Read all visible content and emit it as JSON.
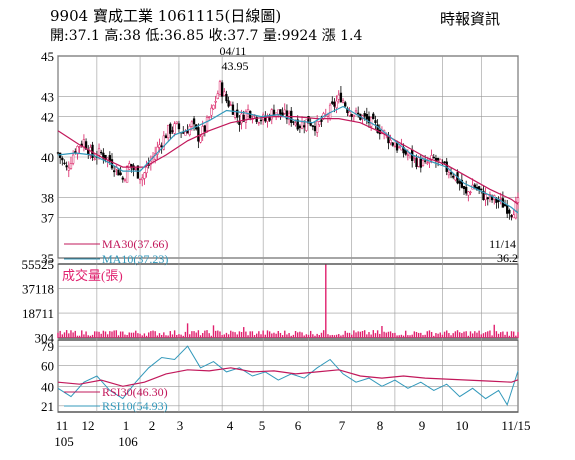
{
  "header": {
    "title": "9904  寶成工業 1061115(日線圖)",
    "source": "時報資訊",
    "quote": "開:37.1 高:38 低:36.85 收:37.7 量:9924 漲 1.4"
  },
  "colors": {
    "candle_up": "#d81b60",
    "candle_down": "#000000",
    "ma30": "#c2185b",
    "ma10": "#3399bb",
    "volume": "#e0206e",
    "rsi30": "#c2185b",
    "rsi10": "#3399bb",
    "grid": "#999999"
  },
  "chart_data": [
    {
      "type": "candlestick",
      "title": "9904  寶成工業 1061115(日線圖)",
      "yticks": [
        35,
        37,
        38,
        40,
        42,
        43,
        45
      ],
      "ylim": [
        35,
        45
      ],
      "grid": true,
      "x_month_labels": [
        "11",
        "12",
        "1",
        "2",
        "3",
        "4",
        "5",
        "6",
        "7",
        "8",
        "9",
        "10",
        "11/15"
      ],
      "x_year_labels": [
        "105",
        "106"
      ],
      "annotations": {
        "high_date": "04/11",
        "high_value": "43.95",
        "low_date": "11/14",
        "low_value": "36.2"
      },
      "legend": {
        "ma30": "MA30(37.66)",
        "ma10": "MA10(37.23)"
      },
      "close_points": [
        [
          0,
          40.2
        ],
        [
          4,
          39.4
        ],
        [
          8,
          40.4
        ],
        [
          12,
          40.8
        ],
        [
          16,
          40.0
        ],
        [
          20,
          40.2
        ],
        [
          24,
          39.8
        ],
        [
          28,
          39.3
        ],
        [
          30,
          38.9
        ],
        [
          33,
          39.6
        ],
        [
          36,
          39.3
        ],
        [
          39,
          39.0
        ],
        [
          43,
          39.8
        ],
        [
          47,
          40.6
        ],
        [
          51,
          41.3
        ],
        [
          55,
          41.5
        ],
        [
          58,
          41.2
        ],
        [
          62,
          41.6
        ],
        [
          65,
          41.0
        ],
        [
          68,
          41.4
        ],
        [
          72,
          42.5
        ],
        [
          75,
          43.5
        ],
        [
          78,
          42.8
        ],
        [
          81,
          42.4
        ],
        [
          84,
          41.8
        ],
        [
          88,
          42.3
        ],
        [
          92,
          42.0
        ],
        [
          96,
          41.8
        ],
        [
          100,
          42.3
        ],
        [
          104,
          42.1
        ],
        [
          108,
          41.9
        ],
        [
          112,
          41.6
        ],
        [
          116,
          41.8
        ],
        [
          120,
          41.5
        ],
        [
          124,
          42.0
        ],
        [
          128,
          42.6
        ],
        [
          131,
          43.0
        ],
        [
          134,
          42.4
        ],
        [
          138,
          42.1
        ],
        [
          142,
          41.9
        ],
        [
          146,
          41.6
        ],
        [
          150,
          41.3
        ],
        [
          154,
          40.8
        ],
        [
          158,
          40.4
        ],
        [
          162,
          40.1
        ],
        [
          166,
          39.8
        ],
        [
          170,
          39.6
        ],
        [
          174,
          39.9
        ],
        [
          178,
          39.5
        ],
        [
          182,
          39.3
        ],
        [
          186,
          38.7
        ],
        [
          189,
          38.1
        ],
        [
          192,
          38.6
        ],
        [
          195,
          38.3
        ],
        [
          198,
          38.0
        ],
        [
          201,
          37.9
        ],
        [
          204,
          37.8
        ],
        [
          207,
          37.6
        ],
        [
          210,
          37.3
        ],
        [
          213,
          37.7
        ]
      ],
      "ma30_points": [
        [
          0,
          41.3
        ],
        [
          10,
          40.6
        ],
        [
          20,
          40.0
        ],
        [
          30,
          39.5
        ],
        [
          40,
          39.5
        ],
        [
          50,
          40.1
        ],
        [
          60,
          40.8
        ],
        [
          70,
          41.3
        ],
        [
          80,
          41.7
        ],
        [
          90,
          41.9
        ],
        [
          100,
          42.0
        ],
        [
          110,
          42.0
        ],
        [
          120,
          41.9
        ],
        [
          130,
          41.9
        ],
        [
          140,
          41.7
        ],
        [
          150,
          41.2
        ],
        [
          160,
          40.6
        ],
        [
          170,
          40.0
        ],
        [
          180,
          39.6
        ],
        [
          190,
          39.0
        ],
        [
          200,
          38.4
        ],
        [
          210,
          37.9
        ],
        [
          213,
          37.66
        ]
      ],
      "ma10_points": [
        [
          0,
          40.1
        ],
        [
          8,
          40.2
        ],
        [
          16,
          40.1
        ],
        [
          24,
          39.7
        ],
        [
          30,
          39.3
        ],
        [
          38,
          39.3
        ],
        [
          46,
          40.2
        ],
        [
          54,
          41.1
        ],
        [
          62,
          41.4
        ],
        [
          70,
          41.8
        ],
        [
          78,
          42.3
        ],
        [
          86,
          42.2
        ],
        [
          94,
          42.0
        ],
        [
          102,
          42.1
        ],
        [
          110,
          41.8
        ],
        [
          118,
          41.7
        ],
        [
          126,
          42.2
        ],
        [
          132,
          42.5
        ],
        [
          140,
          42.0
        ],
        [
          148,
          41.5
        ],
        [
          156,
          40.8
        ],
        [
          164,
          40.1
        ],
        [
          172,
          39.8
        ],
        [
          180,
          39.5
        ],
        [
          188,
          38.7
        ],
        [
          196,
          38.3
        ],
        [
          204,
          37.9
        ],
        [
          210,
          37.5
        ],
        [
          213,
          37.23
        ]
      ]
    },
    {
      "type": "bar",
      "label": "成交量(張)",
      "yticks": [
        304,
        18711,
        37118,
        55525
      ],
      "ylim": [
        0,
        55525
      ],
      "baseline": 4000,
      "spikes": [
        [
          124,
          55000
        ],
        [
          60,
          11000
        ],
        [
          72,
          9500
        ],
        [
          86,
          8200
        ],
        [
          150,
          9000
        ],
        [
          202,
          9924
        ]
      ]
    },
    {
      "type": "line",
      "yticks": [
        21,
        40,
        60,
        79
      ],
      "ylim": [
        15,
        85
      ],
      "legend": {
        "rsi30": "RSI30(46.30)",
        "rsi10": "RSI10(54.93)"
      },
      "rsi30_points": [
        [
          0,
          44
        ],
        [
          10,
          42
        ],
        [
          20,
          46
        ],
        [
          30,
          40
        ],
        [
          40,
          44
        ],
        [
          50,
          52
        ],
        [
          60,
          56
        ],
        [
          70,
          55
        ],
        [
          80,
          58
        ],
        [
          90,
          54
        ],
        [
          100,
          55
        ],
        [
          110,
          52
        ],
        [
          120,
          54
        ],
        [
          130,
          56
        ],
        [
          140,
          50
        ],
        [
          150,
          48
        ],
        [
          160,
          50
        ],
        [
          170,
          48
        ],
        [
          180,
          47
        ],
        [
          190,
          46
        ],
        [
          200,
          45
        ],
        [
          210,
          44
        ],
        [
          213,
          46.3
        ]
      ],
      "rsi10_points": [
        [
          0,
          38
        ],
        [
          6,
          30
        ],
        [
          12,
          44
        ],
        [
          18,
          50
        ],
        [
          24,
          36
        ],
        [
          30,
          28
        ],
        [
          36,
          44
        ],
        [
          42,
          58
        ],
        [
          48,
          68
        ],
        [
          54,
          66
        ],
        [
          60,
          79
        ],
        [
          66,
          58
        ],
        [
          72,
          64
        ],
        [
          78,
          54
        ],
        [
          84,
          58
        ],
        [
          90,
          50
        ],
        [
          96,
          54
        ],
        [
          102,
          46
        ],
        [
          108,
          52
        ],
        [
          114,
          48
        ],
        [
          120,
          58
        ],
        [
          126,
          66
        ],
        [
          132,
          52
        ],
        [
          138,
          44
        ],
        [
          144,
          48
        ],
        [
          150,
          40
        ],
        [
          156,
          46
        ],
        [
          162,
          38
        ],
        [
          168,
          44
        ],
        [
          174,
          36
        ],
        [
          180,
          42
        ],
        [
          186,
          30
        ],
        [
          192,
          38
        ],
        [
          198,
          28
        ],
        [
          204,
          36
        ],
        [
          208,
          22
        ],
        [
          213,
          54.93
        ]
      ]
    }
  ]
}
